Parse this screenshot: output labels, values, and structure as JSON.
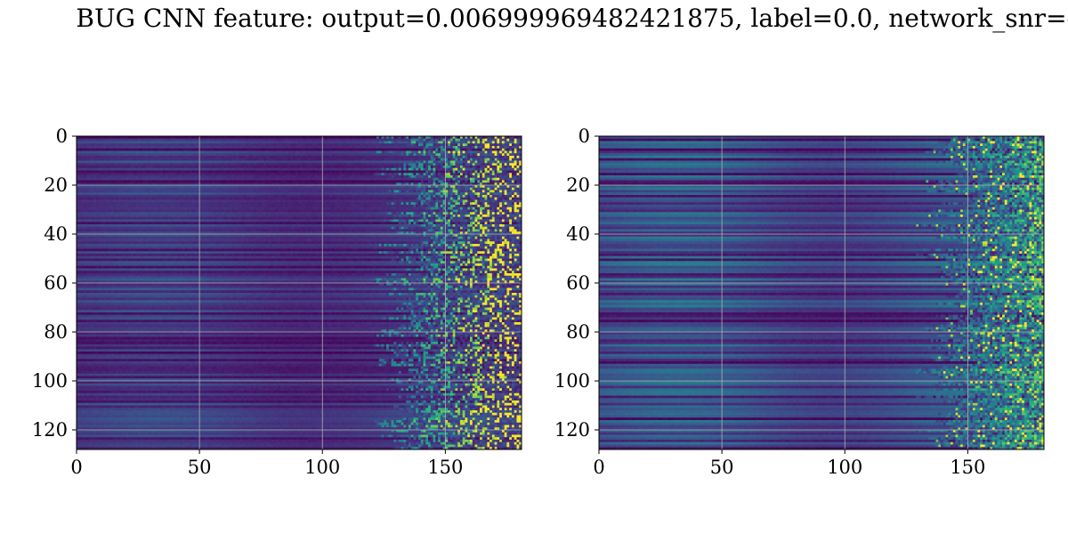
{
  "title": "BUG CNN feature: output=0.006999969482421875, label=0.0, network_snr=-",
  "chart_data": [
    {
      "type": "heatmap",
      "colormap": "viridis",
      "grid": true,
      "x_ticks": [
        0,
        50,
        100,
        150
      ],
      "y_ticks": [
        0,
        20,
        40,
        60,
        80,
        100,
        120
      ],
      "xlim": [
        0,
        181
      ],
      "ylim": [
        128,
        0
      ],
      "rows": 128,
      "cols": 181,
      "pattern": "sparse"
    },
    {
      "type": "heatmap",
      "colormap": "viridis",
      "grid": true,
      "x_ticks": [
        0,
        50,
        100,
        150
      ],
      "y_ticks": [
        0,
        20,
        40,
        60,
        80,
        100,
        120
      ],
      "xlim": [
        0,
        181
      ],
      "ylim": [
        128,
        0
      ],
      "rows": 128,
      "cols": 181,
      "pattern": "dense"
    }
  ]
}
